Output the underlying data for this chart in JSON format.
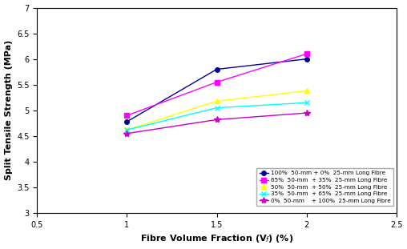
{
  "x": [
    1.0,
    1.5,
    2.0
  ],
  "series": [
    {
      "label": "100%  50-mm + 0%  25-mm Long Fibre",
      "y": [
        4.78,
        5.8,
        6.0
      ],
      "color": "#000099",
      "marker": "o",
      "markersize": 4,
      "markerfacecolor": "#000099",
      "linestyle": "-",
      "linewidth": 1.0
    },
    {
      "label": "65%  50-mm  + 35%  25-mm Long Fibre",
      "y": [
        4.9,
        5.55,
        6.1
      ],
      "color": "#FF00FF",
      "marker": "s",
      "markersize": 4,
      "markerfacecolor": "#FF00FF",
      "linestyle": "-",
      "linewidth": 1.0
    },
    {
      "label": "50%  50-mm  + 50%  25-mm Long Fibre",
      "y": [
        4.62,
        5.18,
        5.38
      ],
      "color": "#FFFF00",
      "marker": "^",
      "markersize": 5,
      "markerfacecolor": "#FFFF00",
      "linestyle": "-",
      "linewidth": 1.0
    },
    {
      "label": "35%  50-mm  + 65%  25-mm Long Fibre",
      "y": [
        4.62,
        5.05,
        5.15
      ],
      "color": "#00FFFF",
      "marker": "x",
      "markersize": 5,
      "markerfacecolor": "#00FFFF",
      "linestyle": "-",
      "linewidth": 1.0
    },
    {
      "label": "0%  50-mm    + 100%  25-mm Long Fibre",
      "y": [
        4.55,
        4.82,
        4.95
      ],
      "color": "#CC00CC",
      "marker": "*",
      "markersize": 6,
      "markerfacecolor": "#CC00CC",
      "linestyle": "-",
      "linewidth": 1.0
    }
  ],
  "xlabel": "Fibre Volume Fraction (V$_f$) (%)",
  "ylabel": "Split Tensile Strength (MPa)",
  "xlim": [
    0.5,
    2.5
  ],
  "ylim": [
    3.0,
    7.0
  ],
  "yticks": [
    3.0,
    3.5,
    4.0,
    4.5,
    5.0,
    5.5,
    6.0,
    6.5,
    7.0
  ],
  "xticks": [
    0.5,
    1.0,
    1.5,
    2.0,
    2.5
  ],
  "background_color": "#ffffff",
  "legend_fontsize": 5.2,
  "axis_labelsize": 8,
  "tick_labelsize": 7
}
